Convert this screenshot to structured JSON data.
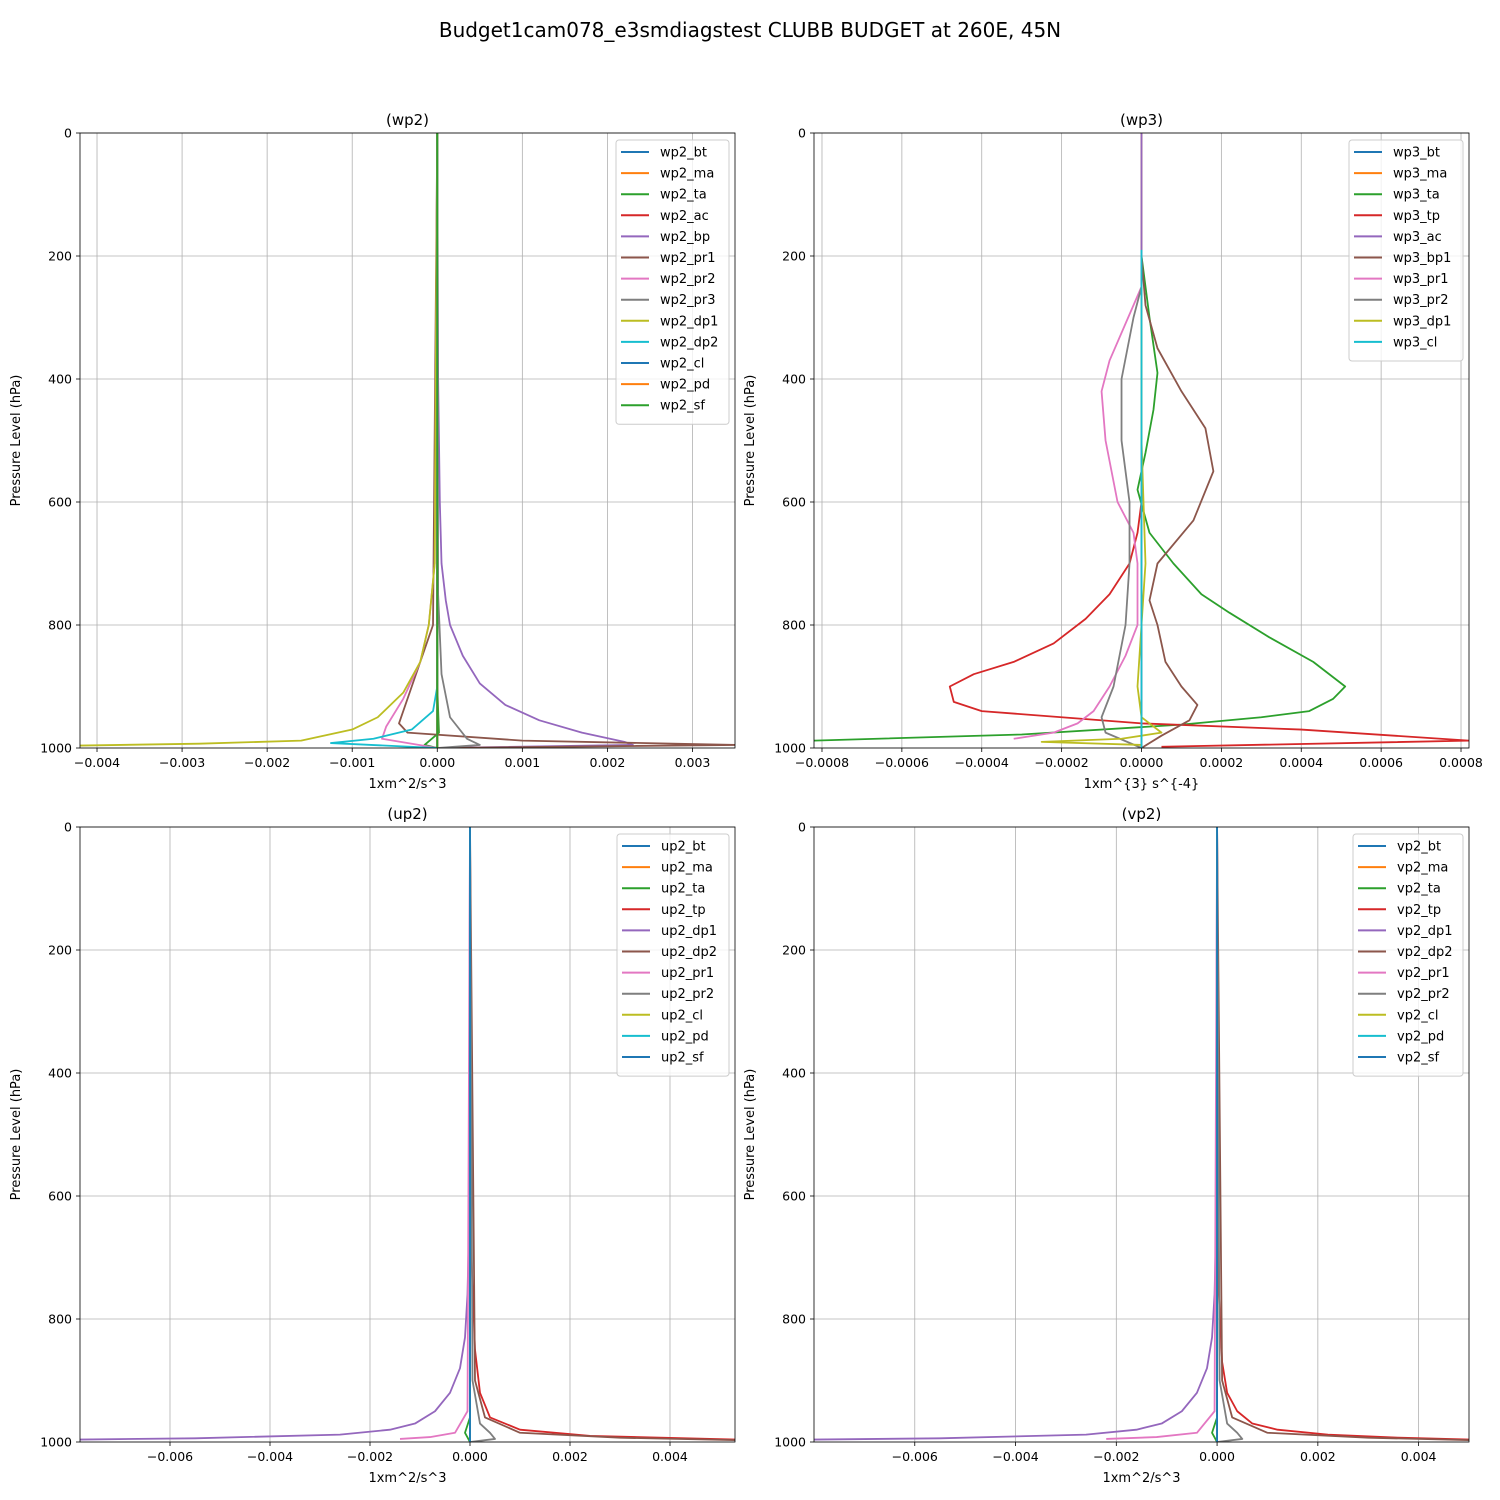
{
  "figure": {
    "suptitle": "Budget1cam078_e3smdiagstest CLUBB BUDGET at 260E, 45N"
  },
  "colors": [
    "#1f77b4",
    "#ff7f0e",
    "#2ca02c",
    "#d62728",
    "#9467bd",
    "#8c564b",
    "#e377c2",
    "#7f7f7f",
    "#bcbd22",
    "#17becf"
  ],
  "chart_data": [
    {
      "type": "line",
      "title": "(wp2)",
      "xlabel": "1xm^2/s^3",
      "ylabel": "Pressure Level (hPa)",
      "xlim": [
        -0.0042,
        0.0035
      ],
      "ylim": [
        1000,
        0
      ],
      "xticks": [
        -0.004,
        -0.003,
        -0.002,
        -0.001,
        0.0,
        0.001,
        0.002,
        0.003
      ],
      "xtick_labels": [
        "−0.004",
        "−0.003",
        "−0.002",
        "−0.001",
        "0.000",
        "0.001",
        "0.002",
        "0.003"
      ],
      "yticks": [
        0,
        200,
        400,
        600,
        800,
        1000
      ],
      "ytick_labels": [
        "0",
        "200",
        "400",
        "600",
        "800",
        "1000"
      ],
      "grid": true,
      "legend": "upper right",
      "series": [
        {
          "name": "wp2_bt",
          "color_index": 0,
          "x": [
            0,
            0,
            0
          ],
          "y": [
            0,
            990,
            1000
          ]
        },
        {
          "name": "wp2_ma",
          "color_index": 1,
          "x": [
            0,
            0,
            0
          ],
          "y": [
            0,
            990,
            1000
          ]
        },
        {
          "name": "wp2_ta",
          "color_index": 2,
          "x": [
            0,
            0,
            2e-05,
            -0.00015,
            0
          ],
          "y": [
            0,
            900,
            975,
            995,
            1000
          ]
        },
        {
          "name": "wp2_ac",
          "color_index": 3,
          "x": [
            0,
            0,
            0
          ],
          "y": [
            0,
            990,
            1000
          ]
        },
        {
          "name": "wp2_bp",
          "color_index": 4,
          "x": [
            0,
            1e-05,
            3e-05,
            5e-05,
            0.0001,
            0.00015,
            0.0003,
            0.0005,
            0.0008,
            0.0012,
            0.0017,
            0.0022,
            0.0023,
            0
          ],
          "y": [
            0,
            400,
            600,
            700,
            760,
            800,
            850,
            895,
            930,
            955,
            975,
            990,
            995,
            1000
          ]
        },
        {
          "name": "wp2_pr1",
          "color_index": 5,
          "x": [
            0,
            -5e-05,
            -0.0003,
            -0.00045,
            -0.00035,
            0.001,
            0.0035,
            0
          ],
          "y": [
            0,
            800,
            900,
            960,
            975,
            988,
            995,
            1000
          ]
        },
        {
          "name": "wp2_pr2",
          "color_index": 6,
          "x": [
            0,
            -3e-05,
            -0.0001,
            -0.0002,
            -0.0004,
            -0.0006,
            -0.00065,
            0
          ],
          "y": [
            0,
            700,
            800,
            860,
            920,
            965,
            985,
            1000
          ]
        },
        {
          "name": "wp2_pr3",
          "color_index": 7,
          "x": [
            0,
            1e-05,
            5e-05,
            0.00015,
            0.00035,
            0.0005,
            0
          ],
          "y": [
            0,
            750,
            880,
            950,
            985,
            995,
            1000
          ]
        },
        {
          "name": "wp2_dp1",
          "color_index": 8,
          "x": [
            0,
            -3e-05,
            -0.0001,
            -0.0002,
            -0.0004,
            -0.0007,
            -0.001,
            -0.0016,
            -0.0028,
            -0.0042
          ],
          "y": [
            0,
            700,
            800,
            860,
            910,
            950,
            970,
            988,
            993,
            996
          ]
        },
        {
          "name": "wp2_dp2",
          "color_index": 9,
          "x": [
            0,
            0,
            -5e-05,
            -0.0003,
            -0.00075,
            -0.00125,
            0
          ],
          "y": [
            0,
            900,
            940,
            970,
            985,
            992,
            1000
          ]
        },
        {
          "name": "wp2_cl",
          "color_index": 0,
          "x": [
            0,
            0
          ],
          "y": [
            0,
            1000
          ]
        },
        {
          "name": "wp2_pd",
          "color_index": 1,
          "x": [
            0,
            0
          ],
          "y": [
            0,
            1000
          ]
        },
        {
          "name": "wp2_sf",
          "color_index": 2,
          "x": [
            0,
            0
          ],
          "y": [
            0,
            1000
          ]
        }
      ]
    },
    {
      "type": "line",
      "title": "(wp3)",
      "xlabel": "1xm^{3} s^{-4}",
      "ylabel": "Pressure Level (hPa)",
      "xlim": [
        -0.00082,
        0.00082
      ],
      "ylim": [
        1000,
        0
      ],
      "xticks": [
        -0.0008,
        -0.0006,
        -0.0004,
        -0.0002,
        0.0,
        0.0002,
        0.0004,
        0.0006,
        0.0008
      ],
      "xtick_labels": [
        "−0.0008",
        "−0.0006",
        "−0.0004",
        "−0.0002",
        "0.0000",
        "0.0002",
        "0.0004",
        "0.0006",
        "0.0008"
      ],
      "yticks": [
        0,
        200,
        400,
        600,
        800,
        1000
      ],
      "ytick_labels": [
        "0",
        "200",
        "400",
        "600",
        "800",
        "1000"
      ],
      "grid": true,
      "legend": "upper right",
      "series": [
        {
          "name": "wp3_bt",
          "color_index": 0,
          "x": [
            0,
            0
          ],
          "y": [
            0,
            1000
          ]
        },
        {
          "name": "wp3_ma",
          "color_index": 1,
          "x": [
            0,
            0
          ],
          "y": [
            0,
            1000
          ]
        },
        {
          "name": "wp3_ta",
          "color_index": 2,
          "x": [
            0,
            2e-05,
            4e-05,
            3e-05,
            1e-05,
            -1e-05,
            2e-05,
            8e-05,
            0.00015,
            0.00022,
            0.00032,
            0.00043,
            0.00051,
            0.00048,
            0.00042,
            0.0003,
            0.0001,
            -0.0003,
            -0.00082
          ],
          "y": [
            200,
            300,
            390,
            450,
            520,
            580,
            650,
            700,
            750,
            780,
            820,
            860,
            900,
            920,
            940,
            950,
            962,
            978,
            988
          ]
        },
        {
          "name": "wp3_tp",
          "color_index": 3,
          "x": [
            0,
            -1e-05,
            -3e-05,
            -8e-05,
            -0.00014,
            -0.00022,
            -0.00032,
            -0.00042,
            -0.00048,
            -0.00047,
            -0.0004,
            -0.0002,
            0,
            0.0004,
            0.00082,
            5e-05
          ],
          "y": [
            600,
            650,
            700,
            750,
            790,
            830,
            860,
            880,
            900,
            925,
            940,
            950,
            960,
            970,
            988,
            998
          ]
        },
        {
          "name": "wp3_ac",
          "color_index": 4,
          "x": [
            0,
            0
          ],
          "y": [
            0,
            1000
          ]
        },
        {
          "name": "wp3_bp1",
          "color_index": 5,
          "x": [
            0,
            1e-05,
            4e-05,
            0.0001,
            0.00016,
            0.00018,
            0.00013,
            4e-05,
            2e-05,
            4e-05,
            6e-05,
            0.0001,
            0.00014,
            0.00012,
            5e-05,
            0
          ],
          "y": [
            200,
            280,
            350,
            420,
            480,
            550,
            630,
            700,
            760,
            800,
            860,
            900,
            930,
            955,
            980,
            1000
          ]
        },
        {
          "name": "wp3_pr1",
          "color_index": 6,
          "x": [
            0,
            -4e-05,
            -8e-05,
            -0.0001,
            -9e-05,
            -6e-05,
            -2e-05,
            -1e-05,
            -1e-05,
            -4e-05,
            -8e-05,
            -0.00012,
            -0.00016,
            -0.00022,
            -0.00032
          ],
          "y": [
            250,
            310,
            370,
            420,
            500,
            600,
            650,
            700,
            800,
            850,
            900,
            940,
            960,
            975,
            985
          ]
        },
        {
          "name": "wp3_pr2",
          "color_index": 7,
          "x": [
            0,
            -2e-05,
            -5e-05,
            -5e-05,
            -3e-05,
            -3e-05,
            -4e-05,
            -7e-05,
            -0.0001,
            -9e-05,
            0
          ],
          "y": [
            250,
            300,
            400,
            500,
            600,
            700,
            800,
            900,
            950,
            975,
            1000
          ]
        },
        {
          "name": "wp3_dp1",
          "color_index": 8,
          "x": [
            0,
            0,
            1e-05,
            0,
            -1e-05,
            0,
            5e-05,
            -5e-05,
            -0.00025,
            0
          ],
          "y": [
            250,
            500,
            700,
            800,
            900,
            950,
            975,
            985,
            990,
            995
          ]
        },
        {
          "name": "wp3_cl",
          "color_index": 9,
          "x": [
            0,
            0
          ],
          "y": [
            190,
            1000
          ]
        }
      ]
    },
    {
      "type": "line",
      "title": "(up2)",
      "xlabel": "1xm^2/s^3",
      "ylabel": "Pressure Level (hPa)",
      "xlim": [
        -0.0078,
        0.0053
      ],
      "ylim": [
        1000,
        0
      ],
      "xticks": [
        -0.006,
        -0.004,
        -0.002,
        0.0,
        0.002,
        0.004
      ],
      "xtick_labels": [
        "−0.006",
        "−0.004",
        "−0.002",
        "0.000",
        "0.002",
        "0.004"
      ],
      "yticks": [
        0,
        200,
        400,
        600,
        800,
        1000
      ],
      "ytick_labels": [
        "0",
        "200",
        "400",
        "600",
        "800",
        "1000"
      ],
      "grid": true,
      "legend": "upper right",
      "series": [
        {
          "name": "up2_bt",
          "color_index": 0,
          "x": [
            0,
            0
          ],
          "y": [
            0,
            1000
          ]
        },
        {
          "name": "up2_ma",
          "color_index": 1,
          "x": [
            0,
            0
          ],
          "y": [
            0,
            1000
          ]
        },
        {
          "name": "up2_ta",
          "color_index": 2,
          "x": [
            0,
            0,
            -0.0001,
            0
          ],
          "y": [
            0,
            960,
            985,
            1000
          ]
        },
        {
          "name": "up2_tp",
          "color_index": 3,
          "x": [
            0,
            3e-05,
            0.0001,
            0.0002,
            0.0004,
            0.001,
            0.0024,
            0.0053
          ],
          "y": [
            0,
            700,
            850,
            920,
            960,
            980,
            990,
            996
          ]
        },
        {
          "name": "up2_dp1",
          "color_index": 4,
          "x": [
            0,
            -2e-05,
            -5e-05,
            -0.0001,
            -0.0002,
            -0.0004,
            -0.0007,
            -0.0011,
            -0.0016,
            -0.0026,
            -0.0055,
            -0.0078
          ],
          "y": [
            0,
            650,
            760,
            830,
            880,
            920,
            950,
            970,
            980,
            988,
            994,
            996
          ]
        },
        {
          "name": "up2_dp2",
          "color_index": 5,
          "x": [
            0,
            0.0001,
            0.0003,
            0.001,
            0.003,
            0.0053
          ],
          "y": [
            0,
            900,
            960,
            985,
            993,
            997
          ]
        },
        {
          "name": "up2_pr1",
          "color_index": 6,
          "x": [
            0,
            -5e-05,
            -0.0003,
            -0.0008,
            -0.0014
          ],
          "y": [
            0,
            950,
            985,
            992,
            995
          ]
        },
        {
          "name": "up2_pr2",
          "color_index": 7,
          "x": [
            0,
            5e-05,
            0.0002,
            0.0004,
            0.0005,
            0
          ],
          "y": [
            0,
            900,
            970,
            985,
            995,
            1000
          ]
        },
        {
          "name": "up2_cl",
          "color_index": 8,
          "x": [
            0,
            0
          ],
          "y": [
            0,
            1000
          ]
        },
        {
          "name": "up2_pd",
          "color_index": 9,
          "x": [
            0,
            0
          ],
          "y": [
            0,
            1000
          ]
        },
        {
          "name": "up2_sf",
          "color_index": 0,
          "x": [
            0,
            0
          ],
          "y": [
            0,
            1000
          ]
        }
      ]
    },
    {
      "type": "line",
      "title": "(vp2)",
      "xlabel": "1xm^2/s^3",
      "ylabel": "Pressure Level (hPa)",
      "xlim": [
        -0.008,
        0.005
      ],
      "ylim": [
        1000,
        0
      ],
      "xticks": [
        -0.006,
        -0.004,
        -0.002,
        0.0,
        0.002,
        0.004
      ],
      "xtick_labels": [
        "−0.006",
        "−0.004",
        "−0.002",
        "0.000",
        "0.002",
        "0.004"
      ],
      "yticks": [
        0,
        200,
        400,
        600,
        800,
        1000
      ],
      "ytick_labels": [
        "0",
        "200",
        "400",
        "600",
        "800",
        "1000"
      ],
      "grid": true,
      "legend": "upper right",
      "series": [
        {
          "name": "vp2_bt",
          "color_index": 0,
          "x": [
            0,
            0
          ],
          "y": [
            0,
            1000
          ]
        },
        {
          "name": "vp2_ma",
          "color_index": 1,
          "x": [
            0,
            0
          ],
          "y": [
            0,
            1000
          ]
        },
        {
          "name": "vp2_ta",
          "color_index": 2,
          "x": [
            0,
            0,
            -0.0001,
            0
          ],
          "y": [
            0,
            960,
            985,
            1000
          ]
        },
        {
          "name": "vp2_tp",
          "color_index": 3,
          "x": [
            0,
            3e-05,
            0.0001,
            0.0002,
            0.0004,
            0.0007,
            0.0012,
            0.0022,
            0.0036,
            0.005
          ],
          "y": [
            0,
            750,
            870,
            920,
            950,
            970,
            980,
            988,
            993,
            996
          ]
        },
        {
          "name": "vp2_dp1",
          "color_index": 4,
          "x": [
            0,
            -2e-05,
            -5e-05,
            -0.0001,
            -0.0002,
            -0.0004,
            -0.0007,
            -0.0011,
            -0.0016,
            -0.0026,
            -0.0055,
            -0.008
          ],
          "y": [
            0,
            650,
            760,
            830,
            880,
            920,
            950,
            970,
            980,
            988,
            994,
            996
          ]
        },
        {
          "name": "vp2_dp2",
          "color_index": 5,
          "x": [
            0,
            0.0001,
            0.0003,
            0.001,
            0.003,
            0.005
          ],
          "y": [
            0,
            900,
            960,
            985,
            993,
            997
          ]
        },
        {
          "name": "vp2_pr1",
          "color_index": 6,
          "x": [
            0,
            -5e-05,
            -0.0004,
            -0.0012,
            -0.0022
          ],
          "y": [
            0,
            950,
            985,
            992,
            995
          ]
        },
        {
          "name": "vp2_pr2",
          "color_index": 7,
          "x": [
            0,
            5e-05,
            0.0002,
            0.0004,
            0.0005,
            0
          ],
          "y": [
            0,
            900,
            970,
            985,
            995,
            1000
          ]
        },
        {
          "name": "vp2_cl",
          "color_index": 8,
          "x": [
            0,
            0
          ],
          "y": [
            0,
            1000
          ]
        },
        {
          "name": "vp2_pd",
          "color_index": 9,
          "x": [
            0,
            0
          ],
          "y": [
            0,
            1000
          ]
        },
        {
          "name": "vp2_sf",
          "color_index": 0,
          "x": [
            0,
            0
          ],
          "y": [
            0,
            1000
          ]
        }
      ]
    }
  ]
}
